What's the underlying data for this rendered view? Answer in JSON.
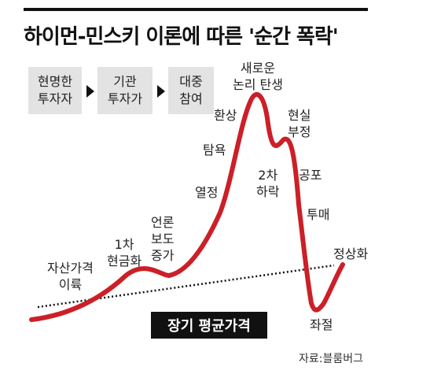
{
  "title": "하이먼-민스키 이론에 따른 '순간 폭락'",
  "stages": [
    {
      "label": "현명한\n투자자"
    },
    {
      "label": "기관\n투자가"
    },
    {
      "label": "대중\n참여"
    }
  ],
  "phases": {
    "stealth": "자산가격\n이륙",
    "first_sell": "1차\n현금화",
    "media": "언론\n보도\n증가",
    "enthusiasm": "열정",
    "greed": "탐욕",
    "delusion": "환상",
    "new_paradigm": "새로운\n논리 탄생",
    "denial": "2차\n하락",
    "reality": "현실\n부정",
    "fear": "공포",
    "capitulation": "투매",
    "despair": "좌절",
    "normal": "정상화"
  },
  "trend_label": "장기 평균가격",
  "source": "자료:블룸버그",
  "colors": {
    "curve": "#cc1f27",
    "trend_line": "#111111",
    "stage_box": "#e3e3e3"
  }
}
